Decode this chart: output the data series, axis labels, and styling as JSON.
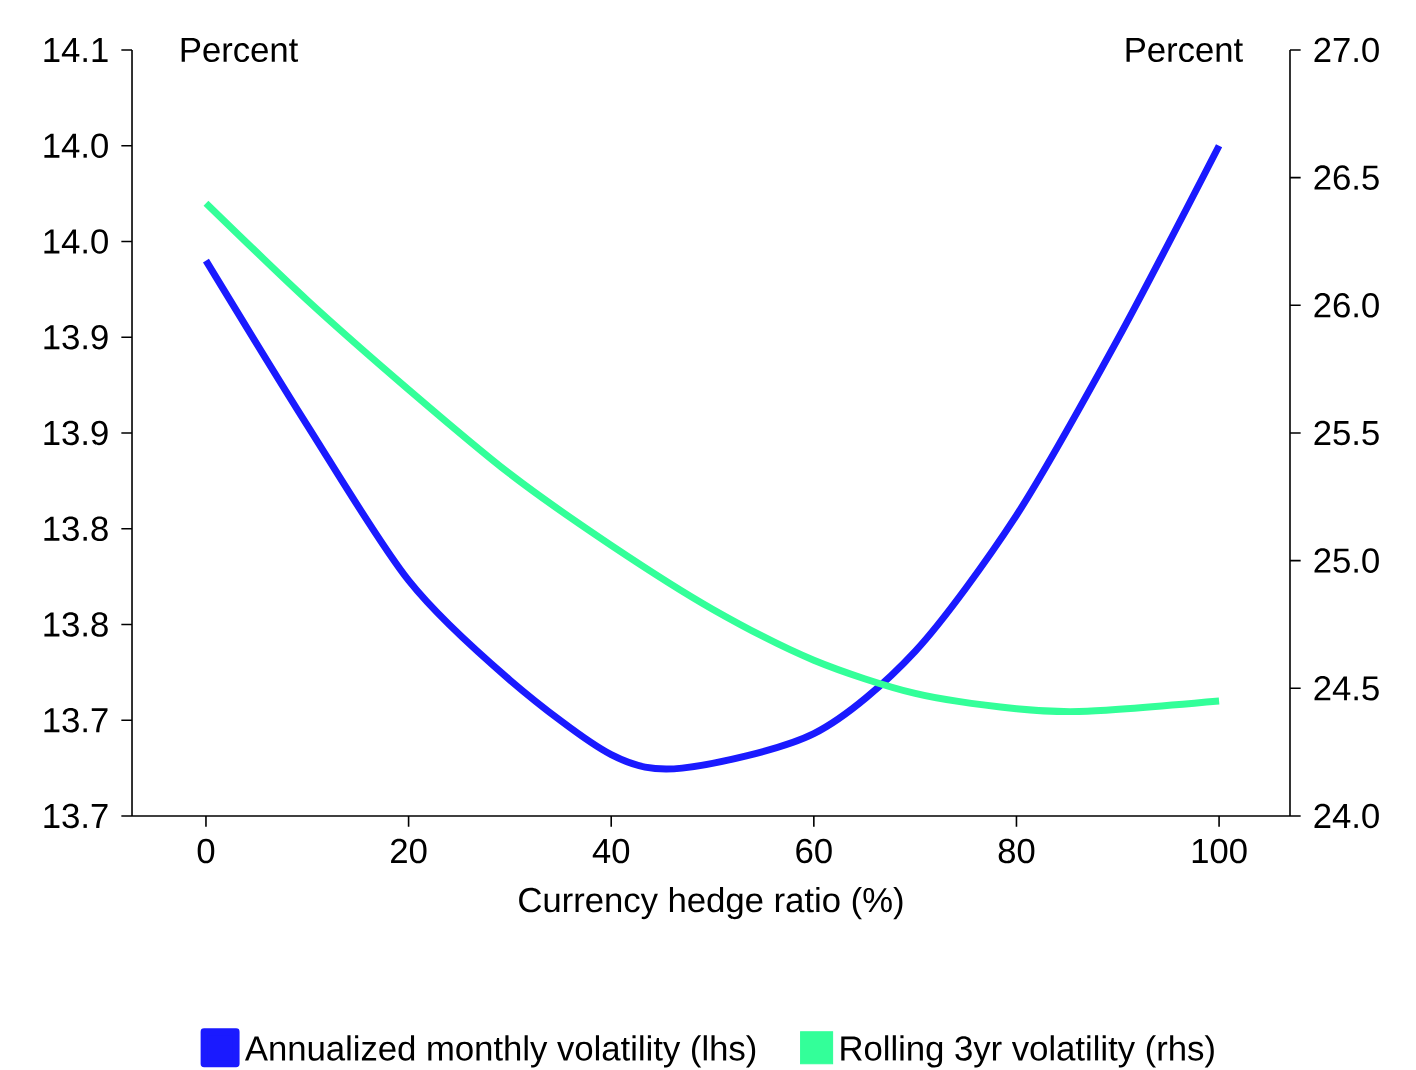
{
  "chart_data": {
    "type": "line",
    "xlabel": "Currency hedge ratio (%)",
    "ylabel": "Percent",
    "y2label": "Percent",
    "x": [
      0,
      10,
      20,
      30,
      40,
      47,
      60,
      70,
      80,
      90,
      100
    ],
    "series": [
      {
        "name": "Annualized monthly volatility (lhs)",
        "color": "#1a1aff",
        "values": [
          13.99,
          13.904,
          13.823,
          13.771,
          13.732,
          13.725,
          13.743,
          13.786,
          13.857,
          13.949,
          14.05
        ]
      },
      {
        "name": "Rolling 3yr volatility (rhs)",
        "color": "#33ff99",
        "axis": "y2",
        "x": [
          0,
          10,
          20,
          30,
          40,
          50,
          60,
          70,
          80,
          87,
          100
        ],
        "values": [
          26.4,
          26.02,
          25.67,
          25.34,
          25.06,
          24.81,
          24.61,
          24.48,
          24.42,
          24.41,
          24.45
        ]
      }
    ],
    "xlim": [
      -7.3,
      107
    ],
    "xticks": [
      0,
      20,
      40,
      60,
      80,
      100
    ],
    "ylim": [
      13.7,
      14.1
    ],
    "yticks": [
      {
        "value": 13.7,
        "label": "13.7"
      },
      {
        "value": 13.75,
        "label": "13.7"
      },
      {
        "value": 13.8,
        "label": "13.8"
      },
      {
        "value": 13.85,
        "label": "13.8"
      },
      {
        "value": 13.9,
        "label": "13.9"
      },
      {
        "value": 13.95,
        "label": "13.9"
      },
      {
        "value": 14.0,
        "label": "14.0"
      },
      {
        "value": 14.05,
        "label": "14.0"
      },
      {
        "value": 14.1,
        "label": "14.1"
      }
    ],
    "y2lim": [
      24,
      27
    ],
    "y2ticks": [
      {
        "value": 24,
        "label": "24.0"
      },
      {
        "value": 24.5,
        "label": "24.5"
      },
      {
        "value": 25,
        "label": "25.0"
      },
      {
        "value": 25.5,
        "label": "25.5"
      },
      {
        "value": 26,
        "label": "26.0"
      },
      {
        "value": 26.5,
        "label": "26.5"
      },
      {
        "value": 27,
        "label": "27.0"
      }
    ],
    "legend": "bottom",
    "grid": false,
    "marker": "none",
    "line_style": "solid"
  }
}
